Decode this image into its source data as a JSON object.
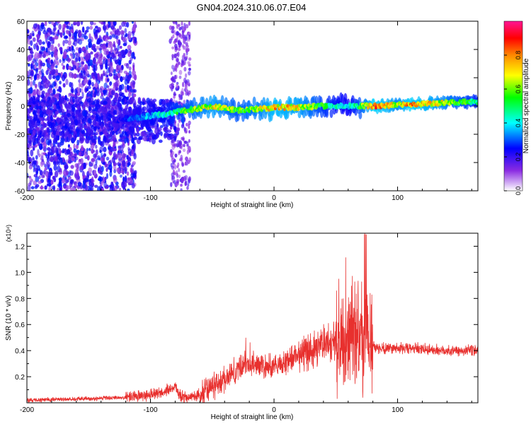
{
  "title": "GN04.2024.310.06.07.E04",
  "chart_data": [
    {
      "type": "heatmap",
      "title": "GN04.2024.310.06.07.E04",
      "xlabel": "Height of straight line (km)",
      "ylabel": "Frequency (Hz)",
      "xlim": [
        -200,
        165
      ],
      "ylim": [
        -60,
        60
      ],
      "x_ticks": [
        "-200",
        "-100",
        "0",
        "100"
      ],
      "y_ticks": [
        "-60",
        "-40",
        "-20",
        "0",
        "20",
        "40",
        "60"
      ],
      "colorbar": {
        "label": "Normalized spectral amplitude",
        "range": [
          0.0,
          1.0
        ],
        "ticks": [
          "0.0",
          "0.2",
          "0.4",
          "0.6",
          "0.8"
        ],
        "colors": [
          "#ffffff",
          "#8a2be2",
          "#0000ff",
          "#00ffff",
          "#00ff00",
          "#ffff00",
          "#ff8800",
          "#ff0000",
          "#ff1493"
        ]
      },
      "ridge": {
        "x": [
          -130,
          -110,
          -90,
          -70,
          -50,
          -30,
          -10,
          0,
          20,
          40,
          60,
          70,
          80,
          90,
          100,
          110,
          130,
          165
        ],
        "frequency": [
          -10,
          -8,
          -6,
          -3,
          0,
          -3,
          -2,
          -1,
          -1,
          0,
          0,
          0,
          0,
          0,
          1,
          1,
          2,
          3
        ],
        "amplitude": [
          0.2,
          0.35,
          0.45,
          0.6,
          0.75,
          0.6,
          0.7,
          0.8,
          0.75,
          0.55,
          0.4,
          0.6,
          0.85,
          0.8,
          0.7,
          0.85,
          0.75,
          0.5
        ]
      },
      "grid": false
    },
    {
      "type": "line",
      "xlabel": "Height of straight line (km)",
      "ylabel": "SNR (10 * v/v)",
      "scale_label": "(x10⁴)",
      "xlim": [
        -200,
        165
      ],
      "ylim": [
        0,
        1.3
      ],
      "x_ticks": [
        "-200",
        "-100",
        "0",
        "100"
      ],
      "y_ticks": [
        "0.2",
        "0.4",
        "0.6",
        "0.8",
        "1.0",
        "1.2"
      ],
      "series": [
        {
          "color": "#e8302e",
          "x": [
            -200,
            -160,
            -120,
            -100,
            -90,
            -80,
            -75,
            -70,
            -60,
            -50,
            -40,
            -30,
            -20,
            -10,
            0,
            10,
            20,
            30,
            40,
            50,
            60,
            65,
            70,
            75,
            80,
            90,
            100,
            120,
            140,
            165
          ],
          "y": [
            0.02,
            0.03,
            0.04,
            0.06,
            0.08,
            0.12,
            0.05,
            0.04,
            0.06,
            0.12,
            0.18,
            0.26,
            0.3,
            0.28,
            0.27,
            0.32,
            0.38,
            0.4,
            0.46,
            0.48,
            0.52,
            0.55,
            0.5,
            0.45,
            0.42,
            0.42,
            0.42,
            0.41,
            0.4,
            0.4
          ]
        }
      ],
      "grid": false
    }
  ]
}
